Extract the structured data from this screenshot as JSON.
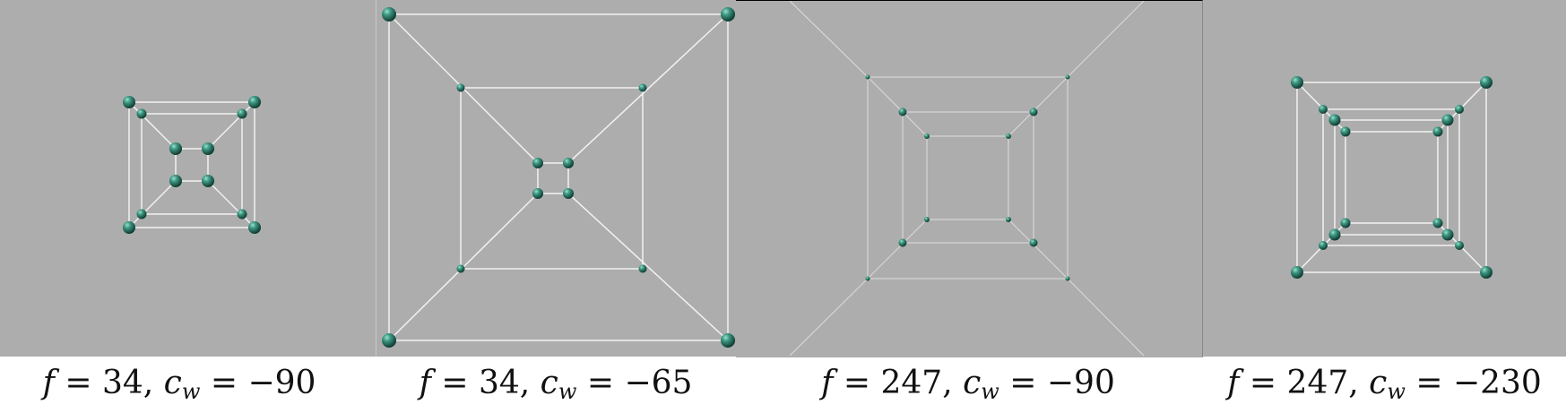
{
  "panels": [
    {
      "f": "34",
      "cw": "−90"
    },
    {
      "f": "34",
      "cw": "−65"
    },
    {
      "f": "247",
      "cw": "−90"
    },
    {
      "f": "247",
      "cw": "−230"
    }
  ],
  "labels": {
    "f_symbol": "f",
    "c_symbol": "c",
    "w_subscript": "w",
    "equals": " = ",
    "comma": ", "
  },
  "colors": {
    "background": "#adadad",
    "edge": "#f2f2f2",
    "node": "#2f7a6a",
    "node_highlight": "#8fd1bf"
  }
}
